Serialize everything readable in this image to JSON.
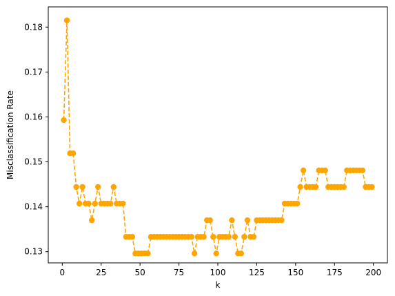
{
  "chart_data": {
    "type": "line",
    "title": "",
    "xlabel": "k",
    "ylabel": "Misclassification Rate",
    "xlim": [
      -9,
      209
    ],
    "ylim": [
      0.1275,
      0.1845
    ],
    "xticks": [
      0,
      25,
      50,
      75,
      100,
      125,
      150,
      175,
      200
    ],
    "xtick_labels": [
      "0",
      "25",
      "50",
      "75",
      "100",
      "125",
      "150",
      "175",
      "200"
    ],
    "yticks": [
      0.13,
      0.14,
      0.15,
      0.16,
      0.17,
      0.18
    ],
    "ytick_labels": [
      "0.13",
      "0.14",
      "0.15",
      "0.16",
      "0.17",
      "0.18"
    ],
    "grid": false,
    "legend": "none",
    "series": [
      {
        "color": "#ffa500",
        "line_style": "dashed",
        "marker": "circle",
        "x": [
          1,
          3,
          5,
          7,
          9,
          11,
          13,
          15,
          17,
          19,
          21,
          23,
          25,
          27,
          29,
          31,
          33,
          35,
          37,
          39,
          41,
          43,
          45,
          47,
          49,
          51,
          53,
          55,
          57,
          59,
          61,
          63,
          65,
          67,
          69,
          71,
          73,
          75,
          77,
          79,
          81,
          83,
          85,
          87,
          89,
          91,
          93,
          95,
          97,
          99,
          101,
          103,
          105,
          107,
          109,
          111,
          113,
          115,
          117,
          119,
          121,
          123,
          125,
          127,
          129,
          131,
          133,
          135,
          137,
          139,
          141,
          143,
          145,
          147,
          149,
          151,
          153,
          155,
          157,
          159,
          161,
          163,
          165,
          167,
          169,
          171,
          173,
          175,
          177,
          179,
          181,
          183,
          185,
          187,
          189,
          191,
          193,
          195,
          197,
          199
        ],
        "y": [
          0.1593,
          0.1815,
          0.1519,
          0.1519,
          0.1444,
          0.1407,
          0.1444,
          0.1407,
          0.1407,
          0.137,
          0.1407,
          0.1444,
          0.1407,
          0.1407,
          0.1407,
          0.1407,
          0.1444,
          0.1407,
          0.1407,
          0.1407,
          0.1333,
          0.1333,
          0.1333,
          0.1296,
          0.1296,
          0.1296,
          0.1296,
          0.1296,
          0.1333,
          0.1333,
          0.1333,
          0.1333,
          0.1333,
          0.1333,
          0.1333,
          0.1333,
          0.1333,
          0.1333,
          0.1333,
          0.1333,
          0.1333,
          0.1333,
          0.1296,
          0.1333,
          0.1333,
          0.1333,
          0.137,
          0.137,
          0.1333,
          0.1296,
          0.1333,
          0.1333,
          0.1333,
          0.1333,
          0.137,
          0.1333,
          0.1296,
          0.1296,
          0.1333,
          0.137,
          0.1333,
          0.1333,
          0.137,
          0.137,
          0.137,
          0.137,
          0.137,
          0.137,
          0.137,
          0.137,
          0.137,
          0.1407,
          0.1407,
          0.1407,
          0.1407,
          0.1407,
          0.1444,
          0.1481,
          0.1444,
          0.1444,
          0.1444,
          0.1444,
          0.1481,
          0.1481,
          0.1481,
          0.1444,
          0.1444,
          0.1444,
          0.1444,
          0.1444,
          0.1444,
          0.1481,
          0.1481,
          0.1481,
          0.1481,
          0.1481,
          0.1481,
          0.1444,
          0.1444,
          0.1444
        ]
      }
    ]
  }
}
